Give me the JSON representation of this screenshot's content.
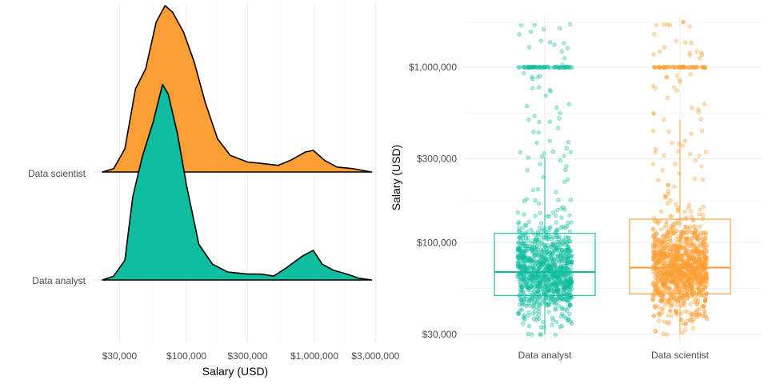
{
  "chart_data": [
    {
      "type": "ridgeline-density",
      "x_scale": "log10",
      "xlabel": "Salary (USD)",
      "ylabel": "",
      "xlim": [
        17000,
        3400000
      ],
      "x_ticks": [
        {
          "value": 30000,
          "label": "$30,000"
        },
        {
          "value": 100000,
          "label": "$100,000"
        },
        {
          "value": 300000,
          "label": "$300,000"
        },
        {
          "value": 1000000,
          "label": "$1,000,000"
        },
        {
          "value": 3000000,
          "label": "$3,000,000"
        }
      ],
      "series": [
        {
          "name": "Data analyst",
          "color": "#0fbd9f",
          "density": [
            [
              22000,
              0.0
            ],
            [
              27000,
              0.02
            ],
            [
              33000,
              0.1
            ],
            [
              38000,
              0.42
            ],
            [
              45000,
              0.62
            ],
            [
              55000,
              0.8
            ],
            [
              65000,
              0.99
            ],
            [
              72000,
              0.94
            ],
            [
              85000,
              0.74
            ],
            [
              100000,
              0.48
            ],
            [
              125000,
              0.18
            ],
            [
              160000,
              0.08
            ],
            [
              210000,
              0.04
            ],
            [
              300000,
              0.03
            ],
            [
              380000,
              0.03
            ],
            [
              480000,
              0.02
            ],
            [
              600000,
              0.06
            ],
            [
              800000,
              0.12
            ],
            [
              980000,
              0.15
            ],
            [
              1150000,
              0.08
            ],
            [
              1400000,
              0.05
            ],
            [
              1800000,
              0.03
            ],
            [
              2200000,
              0.01
            ],
            [
              2800000,
              0.0
            ]
          ]
        },
        {
          "name": "Data scientist",
          "color": "#fb9e33",
          "density": [
            [
              22000,
              0.0
            ],
            [
              27000,
              0.02
            ],
            [
              33000,
              0.14
            ],
            [
              40000,
              0.5
            ],
            [
              48000,
              0.62
            ],
            [
              58000,
              0.9
            ],
            [
              68000,
              1.0
            ],
            [
              78000,
              0.96
            ],
            [
              95000,
              0.84
            ],
            [
              115000,
              0.66
            ],
            [
              140000,
              0.42
            ],
            [
              175000,
              0.2
            ],
            [
              220000,
              0.1
            ],
            [
              300000,
              0.06
            ],
            [
              400000,
              0.05
            ],
            [
              520000,
              0.04
            ],
            [
              650000,
              0.07
            ],
            [
              850000,
              0.12
            ],
            [
              980000,
              0.13
            ],
            [
              1200000,
              0.07
            ],
            [
              1500000,
              0.03
            ],
            [
              2000000,
              0.02
            ],
            [
              2800000,
              0.0
            ]
          ]
        }
      ]
    },
    {
      "type": "box-jitter",
      "y_scale": "log10",
      "xlabel": "",
      "ylabel": "Salary (USD)",
      "ylim": [
        27000,
        2000000
      ],
      "y_ticks": [
        {
          "value": 30000,
          "label": "$30,000"
        },
        {
          "value": 100000,
          "label": "$100,000"
        },
        {
          "value": 300000,
          "label": "$300,000"
        },
        {
          "value": 1000000,
          "label": "$1,000,000"
        }
      ],
      "categories": [
        "Data analyst",
        "Data scientist"
      ],
      "boxes": [
        {
          "category": "Data analyst",
          "color": "#0fbd9f",
          "lower_whisker": 30000,
          "q1": 50000,
          "median": 68000,
          "q3": 113000,
          "upper_whisker": 310000,
          "points": 1100
        },
        {
          "category": "Data scientist",
          "color": "#fb9e33",
          "lower_whisker": 30000,
          "q1": 51000,
          "median": 72000,
          "q3": 136000,
          "upper_whisker": 500000,
          "points": 1300
        }
      ]
    }
  ]
}
